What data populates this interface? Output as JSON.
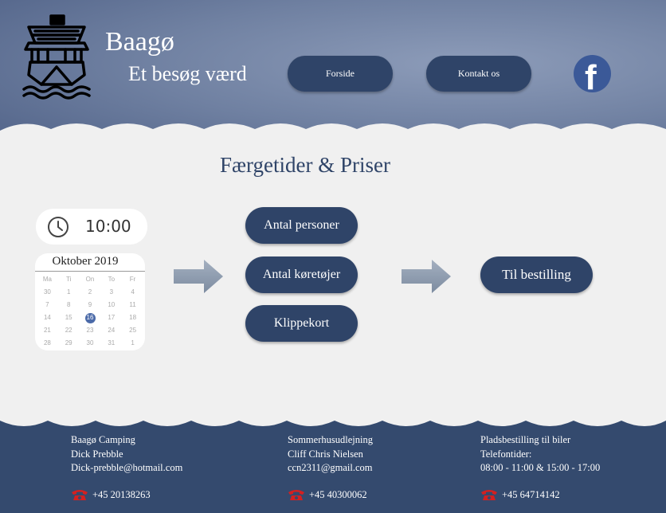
{
  "header": {
    "brand_title": "Baagø",
    "brand_subtitle": "Et besøg værd",
    "logo_icon": "ship-icon",
    "nav": [
      {
        "label": "Forside"
      },
      {
        "label": "Kontakt os"
      }
    ],
    "facebook_icon": "facebook-icon"
  },
  "main": {
    "title": "Færgetider & Priser",
    "time": "10:00",
    "calendar": {
      "month": "Oktober 2019",
      "weekdays": [
        "Ma",
        "Ti",
        "On",
        "To",
        "Fr"
      ],
      "weeks": [
        [
          "30",
          "1",
          "2",
          "3",
          "4"
        ],
        [
          "7",
          "8",
          "9",
          "10",
          "11"
        ],
        [
          "14",
          "15",
          "16",
          "17",
          "18"
        ],
        [
          "21",
          "22",
          "23",
          "24",
          "25"
        ],
        [
          "28",
          "29",
          "30",
          "31",
          "1"
        ]
      ],
      "selected": "16"
    },
    "options": [
      {
        "label": "Antal personer"
      },
      {
        "label": "Antal køretøjer"
      },
      {
        "label": "Klippekort"
      }
    ],
    "booking_label": "Til bestilling"
  },
  "footer": {
    "columns": [
      {
        "lines": [
          "Baagø Camping",
          "Dick Prebble",
          "Dick-prebble@hotmail.com"
        ],
        "phone": "+45 20138263"
      },
      {
        "lines": [
          "Sommerhusudlejning",
          "Cliff Chris Nielsen",
          "ccn2311@gmail.com"
        ],
        "phone": "+45 40300062"
      },
      {
        "lines": [
          "Pladsbestilling til biler",
          "Telefontider:",
          "08:00 - 11:00 & 15:00 - 17:00"
        ],
        "phone": "+45 64714142"
      }
    ]
  },
  "colors": {
    "primary": "#2f4468",
    "footer": "#344a6e",
    "header_light": "#8d9cb9",
    "background": "#f0f0f0",
    "facebook": "#3b5998",
    "phone": "#d42020"
  }
}
